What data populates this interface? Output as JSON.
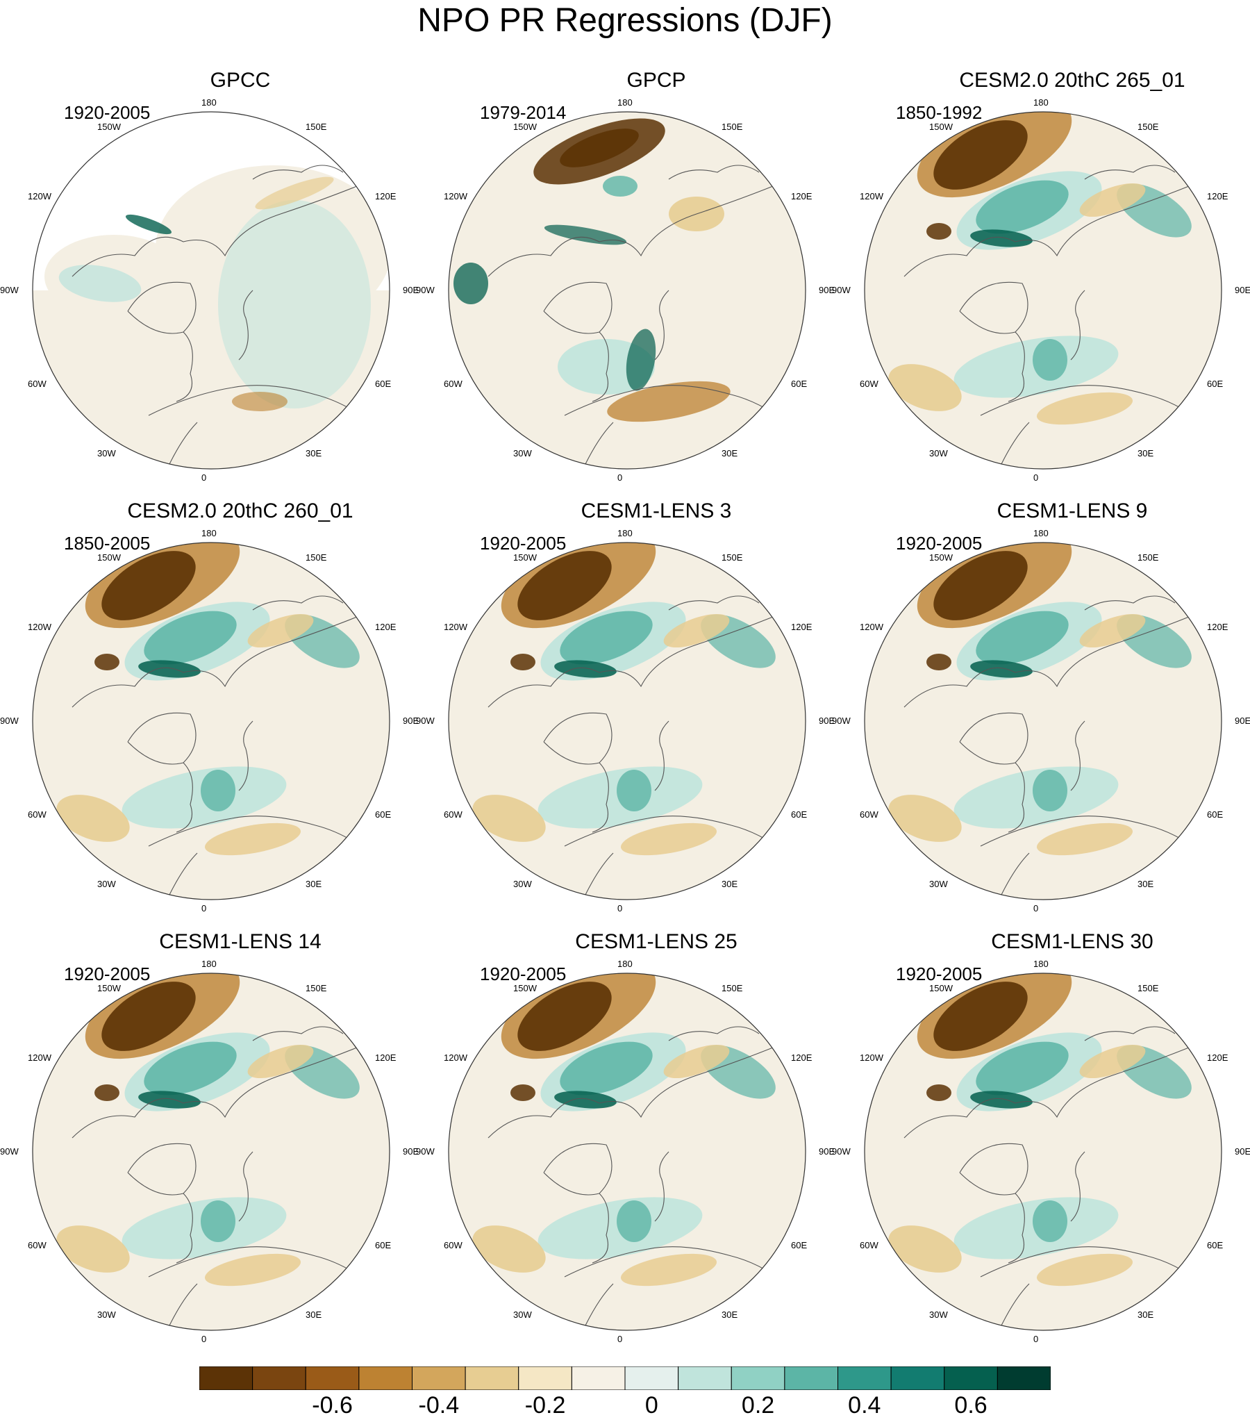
{
  "title": "NPO PR Regressions (DJF)",
  "panels": [
    {
      "title": "GPCC",
      "period": "1920-2005",
      "masked": true,
      "pattern": "obs_gpcc"
    },
    {
      "title": "GPCP",
      "period": "1979-2014",
      "masked": false,
      "pattern": "obs_gpcp"
    },
    {
      "title": "CESM2.0 20thC 265_01",
      "period": "1850-1992",
      "masked": false,
      "pattern": "model"
    },
    {
      "title": "CESM2.0 20thC 260_01",
      "period": "1850-2005",
      "masked": false,
      "pattern": "model"
    },
    {
      "title": "CESM1-LENS 3",
      "period": "1920-2005",
      "masked": false,
      "pattern": "model"
    },
    {
      "title": "CESM1-LENS 9",
      "period": "1920-2005",
      "masked": false,
      "pattern": "model"
    },
    {
      "title": "CESM1-LENS 14",
      "period": "1920-2005",
      "masked": false,
      "pattern": "model"
    },
    {
      "title": "CESM1-LENS 25",
      "period": "1920-2005",
      "masked": false,
      "pattern": "model"
    },
    {
      "title": "CESM1-LENS 30",
      "period": "1920-2005",
      "masked": false,
      "pattern": "model"
    }
  ],
  "longitude_labels": [
    "180",
    "150E",
    "120E",
    "90E",
    "60E",
    "30E",
    "0",
    "30W",
    "60W",
    "90W",
    "120W",
    "150W"
  ],
  "colorbar": {
    "colors": [
      "#5c3306",
      "#7a4510",
      "#9a5b18",
      "#bd8232",
      "#d3a65c",
      "#e7cd92",
      "#f5e7c5",
      "#f6f1e6",
      "#e5f0ed",
      "#c0e4dc",
      "#90d1c4",
      "#5cb5a6",
      "#2e988a",
      "#127c70",
      "#05604f",
      "#003c30"
    ],
    "tick_labels": [
      "-0.6",
      "-0.4",
      "-0.2",
      "0",
      "0.2",
      "0.4",
      "0.6"
    ]
  },
  "colors": {
    "dry_strong": "#5c3306",
    "dry_medium": "#bd8232",
    "dry_weak": "#e7cd92",
    "neutral": "#f4efe3",
    "wet_weak": "#c0e4dc",
    "wet_medium": "#5cb5a6",
    "wet_strong": "#05604f",
    "coast": "#555555"
  }
}
